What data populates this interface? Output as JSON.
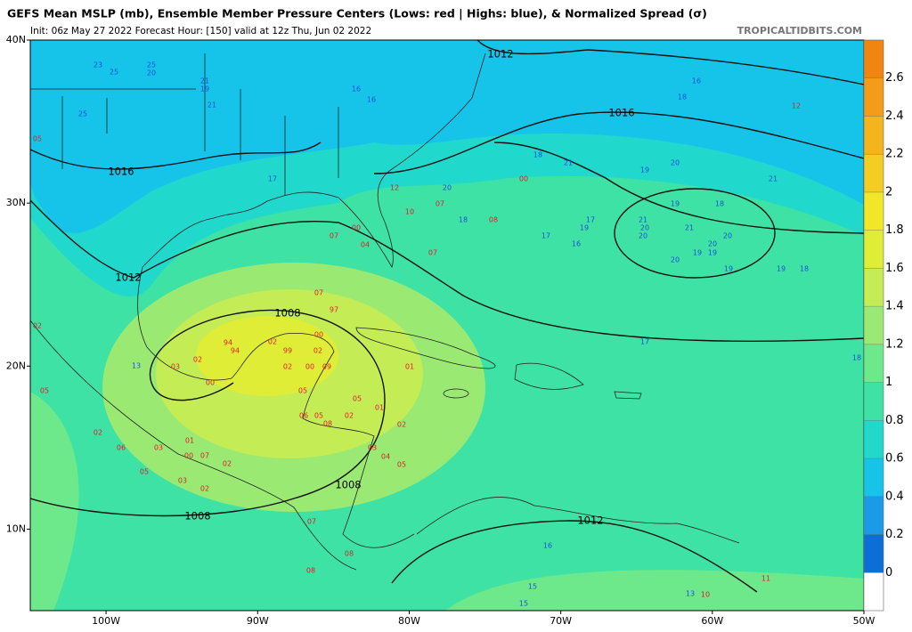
{
  "header": {
    "title": "GEFS Mean MSLP (mb), Ensemble Member Pressure Centers (Lows: red | Highs: blue), & Normalized Spread (σ)",
    "subtitle": "Init: 06z May 27 2022   Forecast Hour: [150]   valid at 12z Thu, Jun 02 2022",
    "credit": "TROPICALTIDBITS.COM"
  },
  "map": {
    "lonlim": [
      -105,
      -50
    ],
    "latlim": [
      5,
      40
    ],
    "lon_ticks": [
      {
        "value": -100,
        "label": "100W"
      },
      {
        "value": -90,
        "label": "90W"
      },
      {
        "value": -80,
        "label": "80W"
      },
      {
        "value": -70,
        "label": "70W"
      },
      {
        "value": -60,
        "label": "60W"
      },
      {
        "value": -50,
        "label": "50W"
      }
    ],
    "lat_ticks": [
      {
        "value": 40,
        "label": "40N"
      },
      {
        "value": 30,
        "label": "30N"
      },
      {
        "value": 20,
        "label": "20N"
      },
      {
        "value": 10,
        "label": "10N"
      }
    ],
    "isobar_labels": [
      "1012",
      "1016",
      "1016",
      "1012",
      "1008",
      "1008",
      "1008",
      "1012"
    ],
    "lows": [
      "94",
      "94",
      "02",
      "99",
      "02",
      "00",
      "97",
      "07",
      "02",
      "00",
      "09",
      "05",
      "01",
      "05",
      "01",
      "02",
      "06",
      "05",
      "08",
      "02",
      "03",
      "04",
      "05",
      "02",
      "03",
      "00",
      "02",
      "06",
      "03",
      "05",
      "01",
      "00",
      "07",
      "02",
      "03",
      "02",
      "07",
      "00",
      "04",
      "07",
      "10",
      "12",
      "07",
      "08",
      "00",
      "05",
      "02",
      "05",
      "07",
      "08",
      "08",
      "11",
      "10",
      "12"
    ],
    "highs": [
      "23",
      "25",
      "25",
      "20",
      "21",
      "19",
      "21",
      "25",
      "16",
      "16",
      "18",
      "16",
      "18",
      "21",
      "19",
      "20",
      "21",
      "17",
      "20",
      "18",
      "17",
      "19",
      "17",
      "16",
      "21",
      "20",
      "20",
      "21",
      "19",
      "18",
      "20",
      "20",
      "19",
      "19",
      "20",
      "19",
      "19",
      "18",
      "17",
      "18",
      "13",
      "15",
      "15",
      "13",
      "16"
    ]
  },
  "colorbar": {
    "lim": [
      -0.2,
      2.8
    ],
    "ticks": [
      0,
      0.2,
      0.4,
      0.6,
      0.8,
      1,
      1.2,
      1.4,
      1.6,
      1.8,
      2,
      2.2,
      2.4,
      2.6
    ],
    "colors": [
      "#ffffff",
      "#0b6fd6",
      "#1a9be6",
      "#16c4ea",
      "#21d8cc",
      "#3de2a4",
      "#6de88a",
      "#9ae972",
      "#c4ec55",
      "#dfed36",
      "#f1e628",
      "#f4cc22",
      "#f4b41e",
      "#f39c18",
      "#f08610"
    ]
  }
}
